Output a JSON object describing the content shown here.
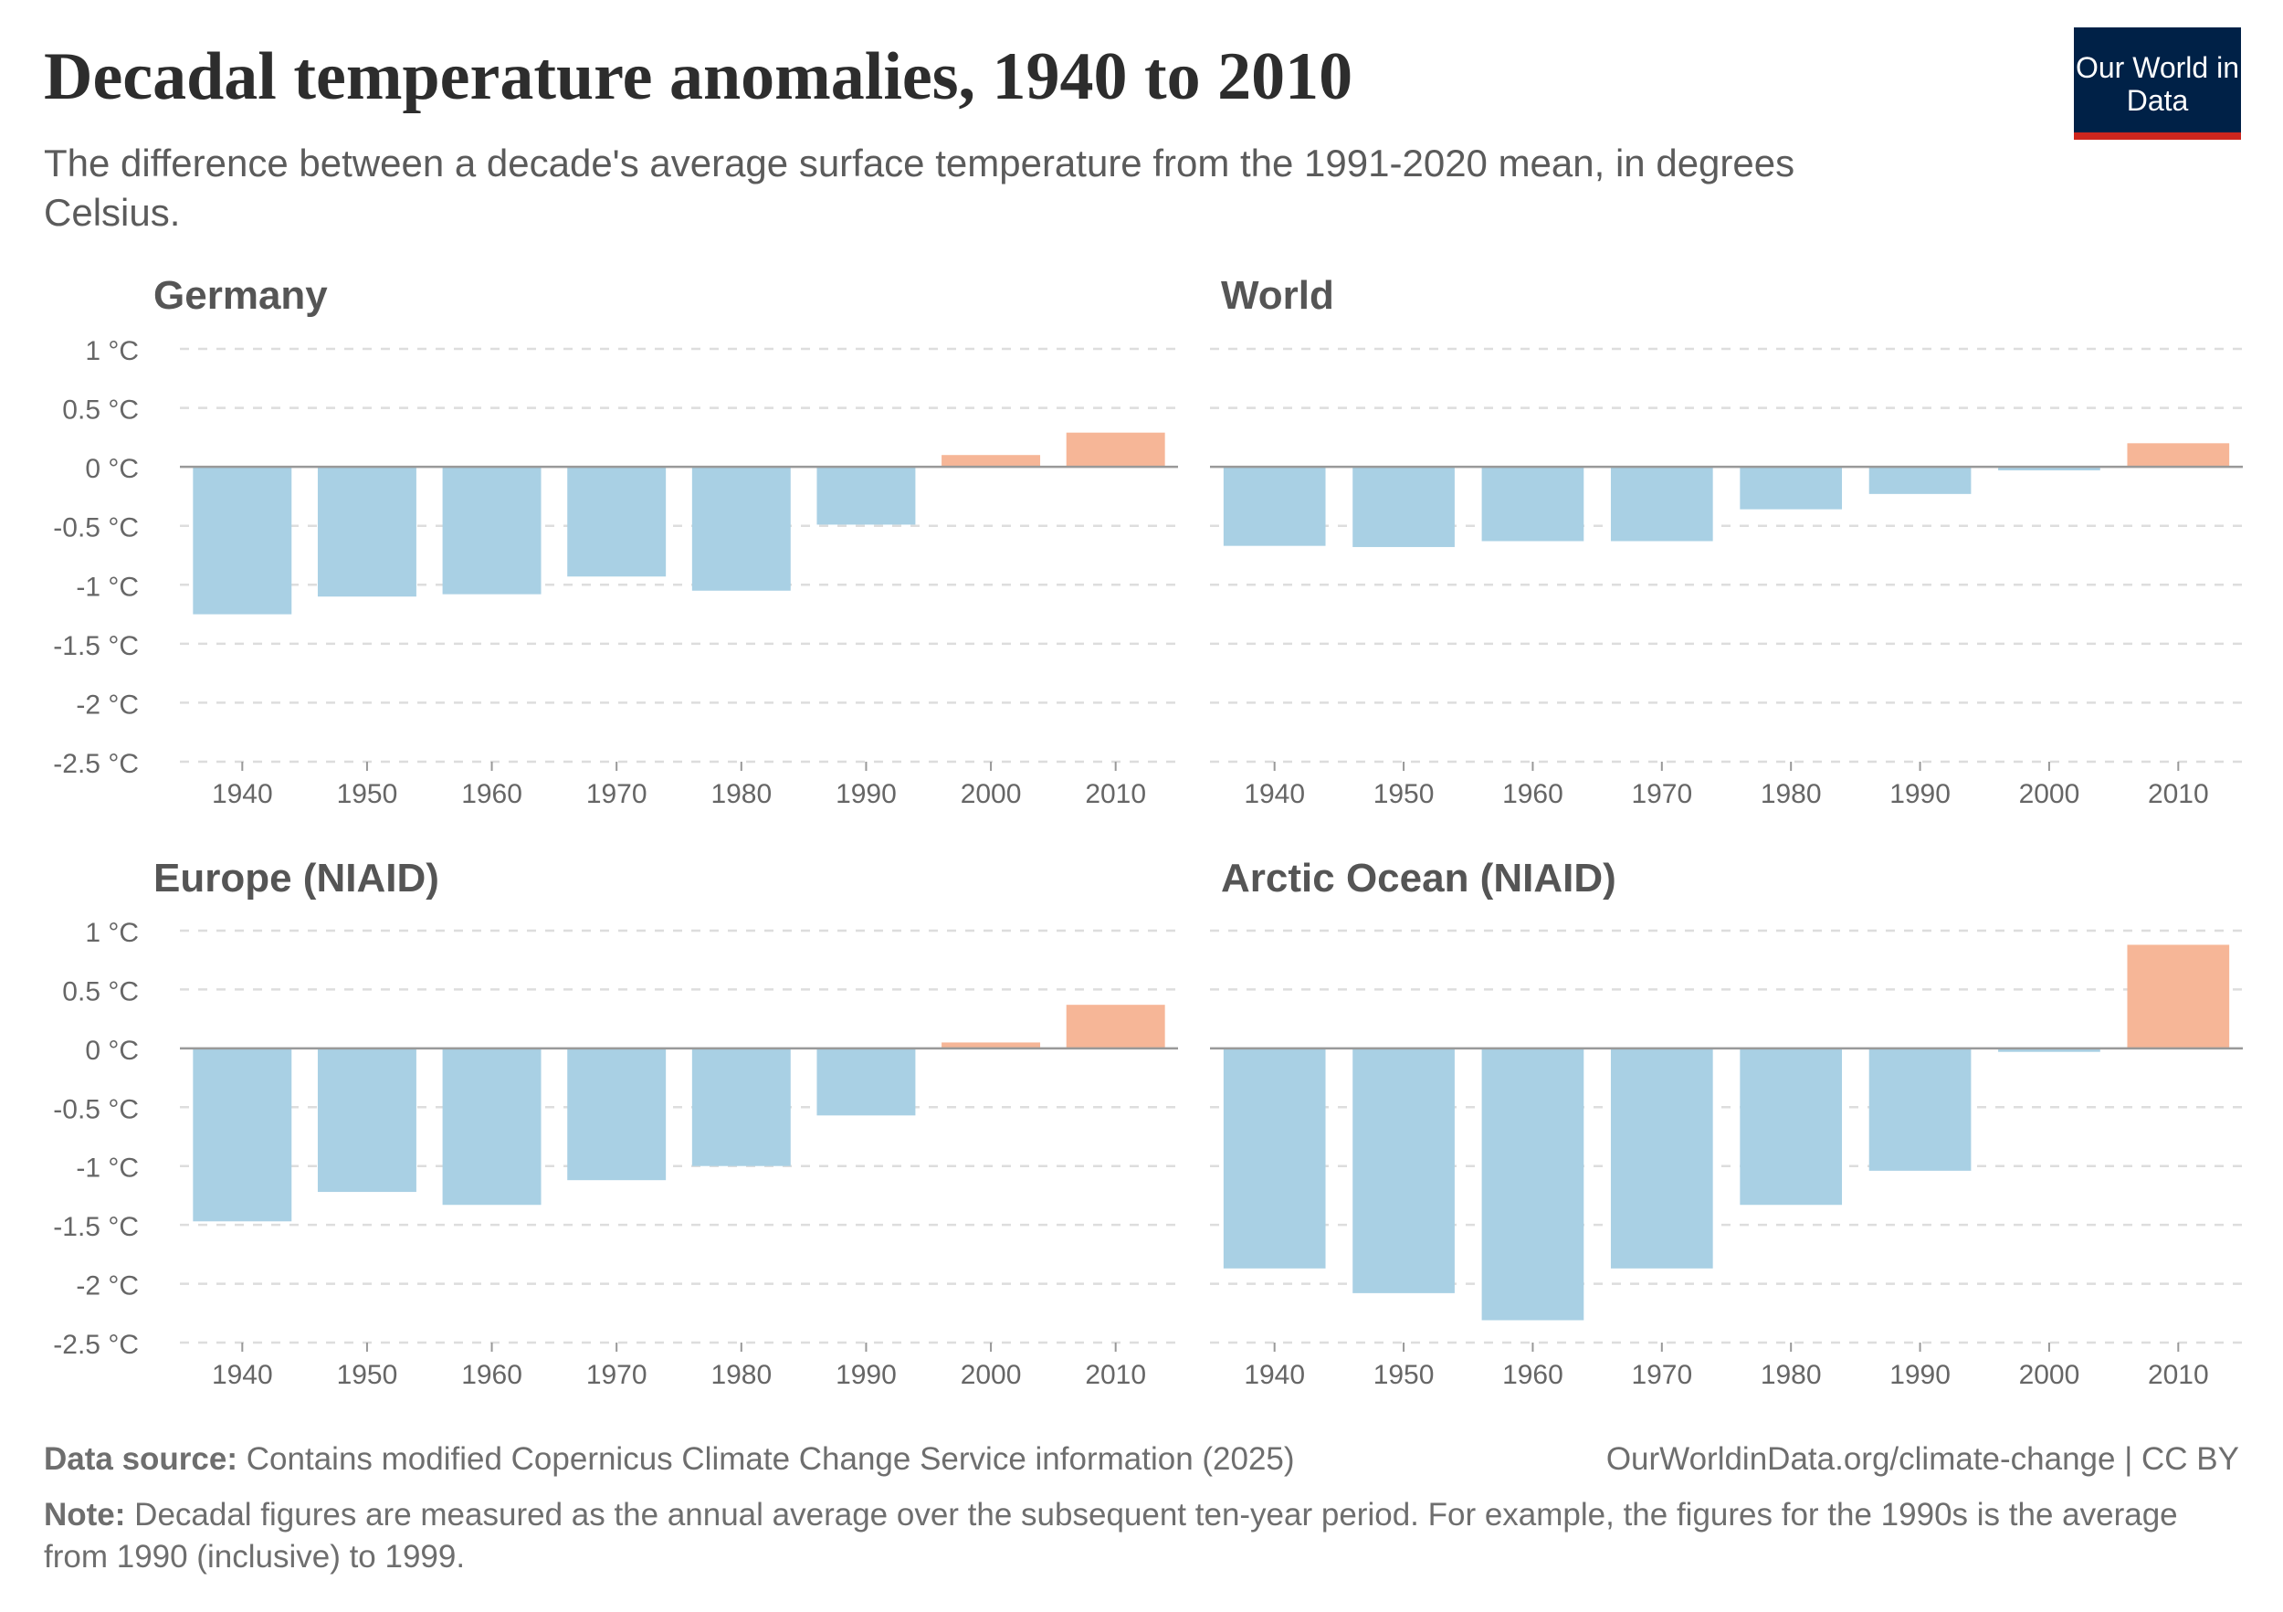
{
  "header": {
    "title": "Decadal temperature anomalies, 1940 to 2010",
    "subtitle": "The difference between a decade's average surface temperature from the 1991-2020 mean, in degrees Celsius.",
    "logo": "Our World in Data"
  },
  "footer": {
    "source_label": "Data source:",
    "source_text": "Contains modified Copernicus Climate Change Service information (2025)",
    "url": "OurWorldinData.org/climate-change | CC BY",
    "note_label": "Note:",
    "note_text": "Decadal figures are measured as the annual average over the subsequent ten-year period. For example, the figures for the 1990s is the average from 1990 (inclusive) to 1999."
  },
  "colors": {
    "negative": "#a9d0e4",
    "positive": "#f6b697",
    "zero_line": "#999999",
    "grid": "#dddddd"
  },
  "chart_data": [
    {
      "type": "bar",
      "title": "Germany",
      "categories": [
        "1940",
        "1950",
        "1960",
        "1970",
        "1980",
        "1990",
        "2000",
        "2010"
      ],
      "values": [
        -1.25,
        -1.1,
        -1.08,
        -0.93,
        -1.05,
        -0.49,
        0.1,
        0.29
      ],
      "yticks": [
        "1 °C",
        "0.5 °C",
        "0 °C",
        "-0.5 °C",
        "-1 °C",
        "-1.5 °C",
        "-2 °C",
        "-2.5 °C"
      ],
      "ylim": [
        -2.5,
        1
      ],
      "grid": true
    },
    {
      "type": "bar",
      "title": "World",
      "categories": [
        "1940",
        "1950",
        "1960",
        "1970",
        "1980",
        "1990",
        "2000",
        "2010"
      ],
      "values": [
        -0.67,
        -0.68,
        -0.63,
        -0.63,
        -0.36,
        -0.23,
        -0.03,
        0.2
      ],
      "yticks": [],
      "ylim": [
        -2.5,
        1
      ],
      "grid": true
    },
    {
      "type": "bar",
      "title": "Europe (NIAID)",
      "categories": [
        "1940",
        "1950",
        "1960",
        "1970",
        "1980",
        "1990",
        "2000",
        "2010"
      ],
      "values": [
        -1.47,
        -1.22,
        -1.33,
        -1.12,
        -1.0,
        -0.57,
        0.05,
        0.37
      ],
      "yticks": [
        "1 °C",
        "0.5 °C",
        "0 °C",
        "-0.5 °C",
        "-1 °C",
        "-1.5 °C",
        "-2 °C",
        "-2.5 °C"
      ],
      "ylim": [
        -2.5,
        1
      ],
      "grid": true
    },
    {
      "type": "bar",
      "title": "Arctic Ocean (NIAID)",
      "categories": [
        "1940",
        "1950",
        "1960",
        "1970",
        "1980",
        "1990",
        "2000",
        "2010"
      ],
      "values": [
        -1.87,
        -2.08,
        -2.31,
        -1.87,
        -1.33,
        -1.04,
        -0.03,
        0.88
      ],
      "yticks": [],
      "ylim": [
        -2.5,
        1
      ],
      "grid": true
    }
  ]
}
